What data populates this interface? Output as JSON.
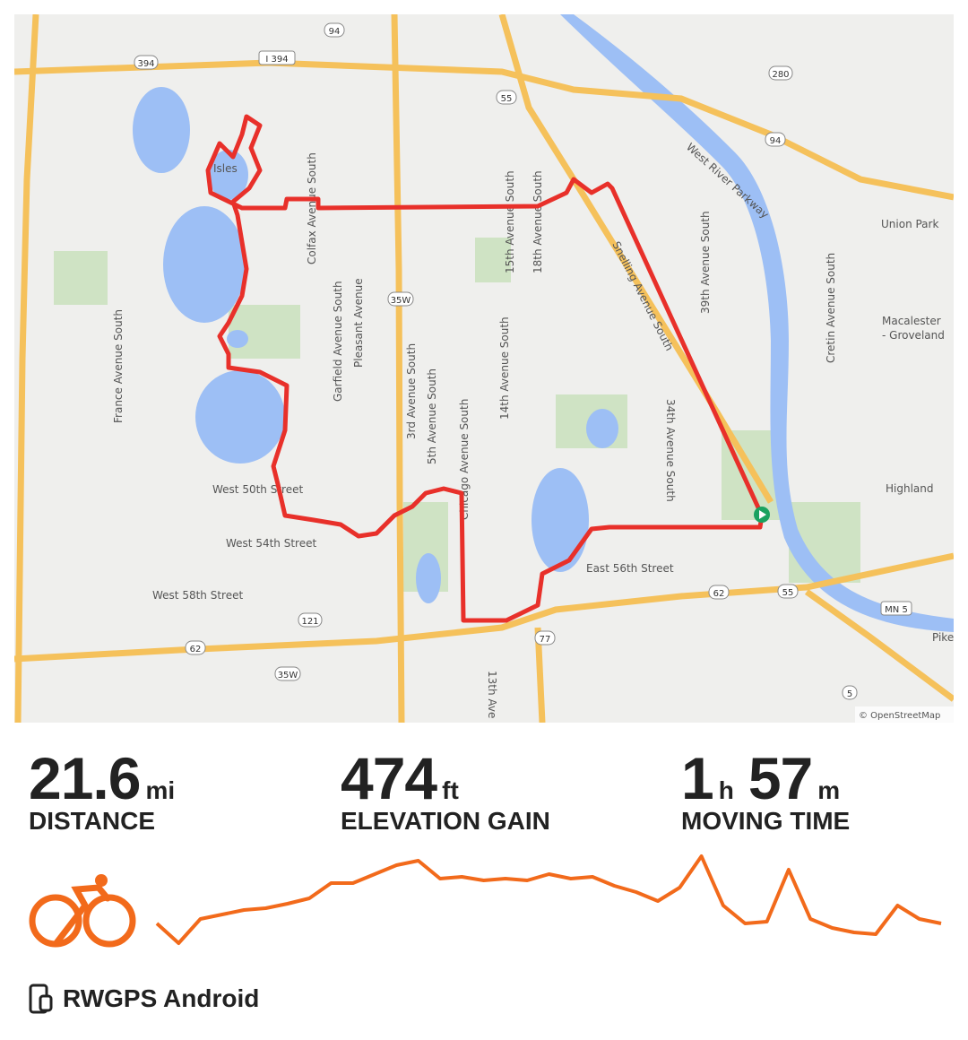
{
  "map": {
    "attribution": "© OpenStreetMap",
    "colors": {
      "route": "#e8302a",
      "water": "#9dbff5",
      "highway": "#f5c15b",
      "park": "#cfe3c4",
      "land": "#efefed",
      "start_marker": "#1aa260"
    },
    "labels": {
      "isles": "Isles",
      "colfax": "Colfax Avenue South",
      "garfield": "Garfield Avenue South",
      "pleasant": "Pleasant Avenue",
      "third": "3rd Avenue South",
      "fifth": "5th Avenue South",
      "chicago": "Chicago Avenue South",
      "fourteenth": "14th Avenue South",
      "fifteenth": "15th Avenue South",
      "eighteenth": "18th Avenue South",
      "snelling": "Snelling Avenue South",
      "thirtyninth": "39th Avenue South",
      "thirtyfourth": "34th Avenue South",
      "river_parkway": "West River Parkway",
      "union_park": "Union Park",
      "macalester": "Macalester",
      "groveland": "- Groveland",
      "cretin": "Cretin Avenue South",
      "highland": "Highland",
      "w50": "West 50th Street",
      "w54": "West 54th Street",
      "w58": "West 58th Street",
      "e56": "East 56th Street",
      "france": "France Avenue South",
      "pike": "Pike",
      "thirteenth": "13th Ave"
    },
    "shields": [
      "394",
      "I 394",
      "94",
      "55",
      "280",
      "94",
      "35W",
      "62",
      "121",
      "77",
      "62",
      "55",
      "35W",
      "5",
      "MN 5"
    ]
  },
  "stats": {
    "distance": {
      "value": "21.6",
      "unit": "mi",
      "label": "DISTANCE"
    },
    "elevation": {
      "value": "474",
      "unit": "ft",
      "label": "ELEVATION GAIN"
    },
    "moving_time": {
      "hours": "1",
      "h_unit": "h",
      "minutes": "57",
      "m_unit": "m",
      "label": "MOVING TIME"
    }
  },
  "activity_icon": "cyclist-icon",
  "accent_color": "#f26a1b",
  "elevation_profile": [
    30,
    8,
    35,
    40,
    45,
    47,
    52,
    58,
    75,
    75,
    85,
    95,
    100,
    80,
    82,
    78,
    80,
    78,
    85,
    80,
    82,
    72,
    65,
    55,
    70,
    105,
    50,
    30,
    32,
    90,
    35,
    25,
    20,
    18,
    50,
    35,
    30
  ],
  "device": {
    "icon": "phone-watch-icon",
    "label": "RWGPS Android"
  }
}
